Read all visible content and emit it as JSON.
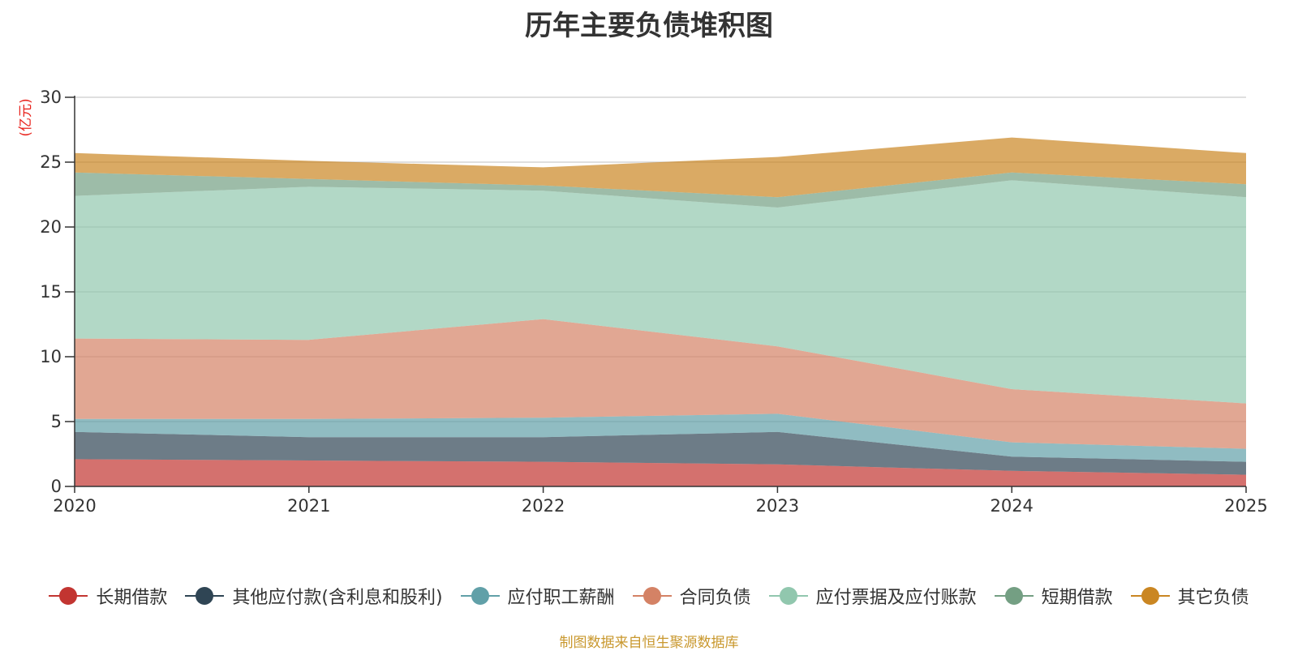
{
  "chart_data": {
    "type": "area",
    "stacked": true,
    "title": "历年主要负债堆积图",
    "ylabel": "(亿元)",
    "xlabel": "",
    "ylim": [
      0,
      30
    ],
    "yticks": [
      "0",
      "5",
      "10",
      "15",
      "20",
      "25",
      "30"
    ],
    "categories": [
      "2020",
      "2021",
      "2022",
      "2023",
      "2024",
      "2025"
    ],
    "series": [
      {
        "name": "长期借款",
        "color": "#c23531",
        "values": [
          2.1,
          2.0,
          1.9,
          1.7,
          1.2,
          0.9
        ]
      },
      {
        "name": "其他应付款(含利息和股利)",
        "color": "#2f4554",
        "values": [
          2.1,
          1.8,
          1.9,
          2.5,
          1.1,
          1.0
        ]
      },
      {
        "name": "应付职工薪酬",
        "color": "#61a0a8",
        "values": [
          1.0,
          1.4,
          1.5,
          1.4,
          1.1,
          1.0
        ]
      },
      {
        "name": "合同负债",
        "color": "#d48265",
        "values": [
          6.2,
          6.1,
          7.6,
          5.2,
          4.1,
          3.5
        ]
      },
      {
        "name": "应付票据及应付账款",
        "color": "#91c7ae",
        "values": [
          11.0,
          11.8,
          9.9,
          10.7,
          16.1,
          15.9
        ]
      },
      {
        "name": "短期借款",
        "color": "#749f83",
        "values": [
          1.8,
          0.6,
          0.4,
          0.8,
          0.6,
          1.0
        ]
      },
      {
        "name": "其它负债",
        "color": "#ca8622",
        "values": [
          1.5,
          1.4,
          1.4,
          3.1,
          2.7,
          2.4
        ]
      }
    ],
    "source": "制图数据来自恒生聚源数据库"
  }
}
